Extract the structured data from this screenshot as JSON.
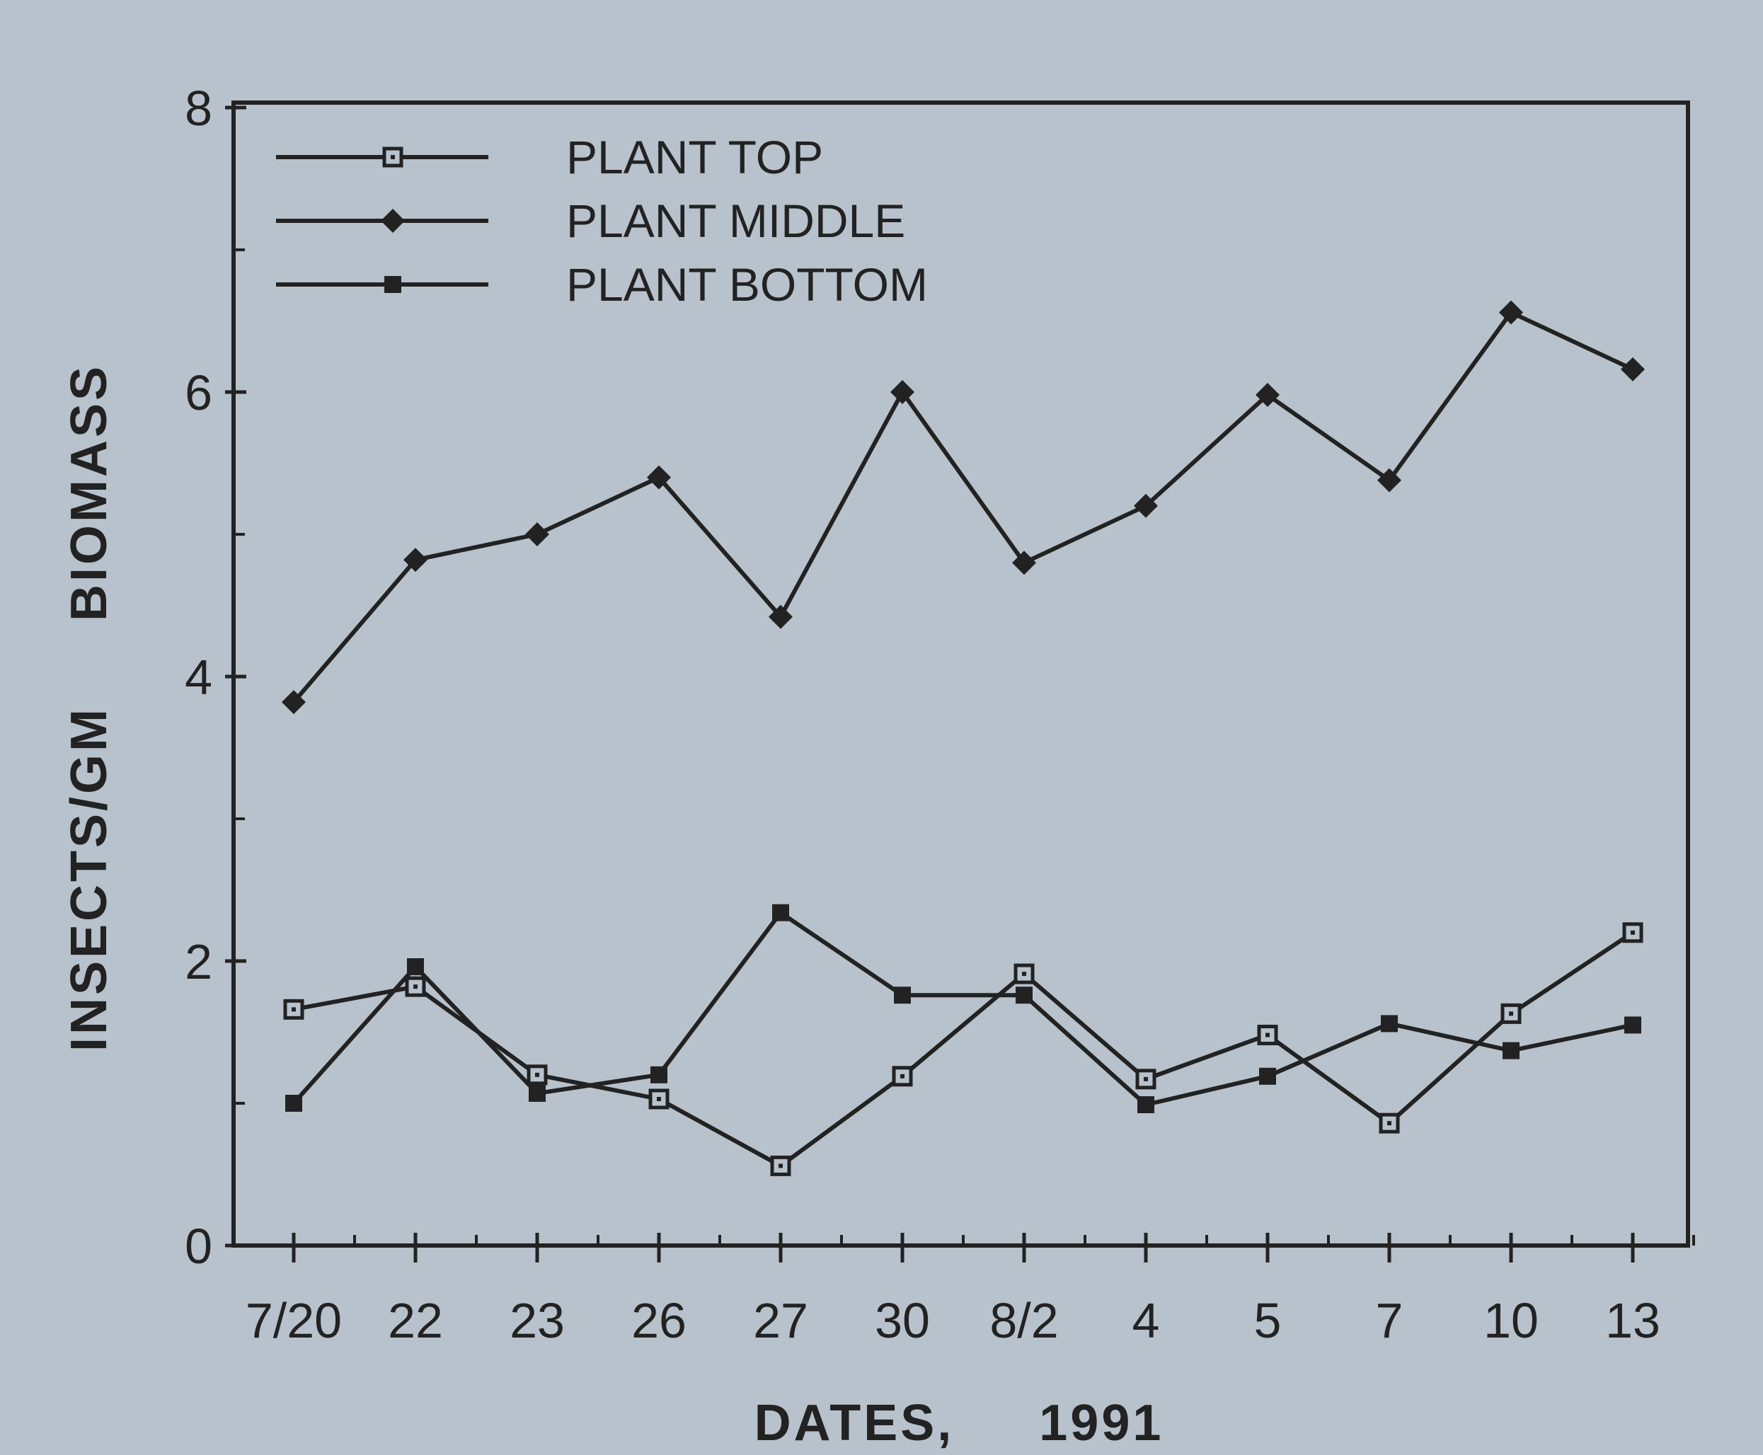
{
  "chart_data": {
    "type": "line",
    "title": "",
    "xlabel": "DATES,     1991",
    "ylabel": "INSECTS/GM     BIOMASS",
    "ylim": [
      0,
      8
    ],
    "yticks": [
      "0",
      "2",
      "4",
      "6",
      "8"
    ],
    "categories": [
      "7/20",
      "22",
      "23",
      "26",
      "27",
      "30",
      "8/2",
      "4",
      "5",
      "7",
      "10",
      "13"
    ],
    "series": [
      {
        "name": "PLANT TOP",
        "marker": "open-square",
        "values": [
          1.66,
          1.82,
          1.2,
          1.03,
          0.56,
          1.19,
          1.91,
          1.17,
          1.48,
          0.86,
          1.63,
          2.2
        ]
      },
      {
        "name": "PLANT MIDDLE",
        "marker": "filled-diamond",
        "values": [
          3.82,
          4.82,
          5.0,
          5.4,
          4.42,
          6.0,
          4.8,
          5.2,
          5.98,
          5.38,
          6.56,
          6.16
        ]
      },
      {
        "name": "PLANT BOTTOM",
        "marker": "filled-square",
        "values": [
          1.0,
          1.96,
          1.07,
          1.2,
          2.34,
          1.76,
          1.76,
          0.99,
          1.19,
          1.56,
          1.37,
          1.55
        ]
      }
    ],
    "legend_position": "top-left",
    "grid": false,
    "colors": {
      "background": "#b8c2cc",
      "ink": "#222222"
    }
  }
}
